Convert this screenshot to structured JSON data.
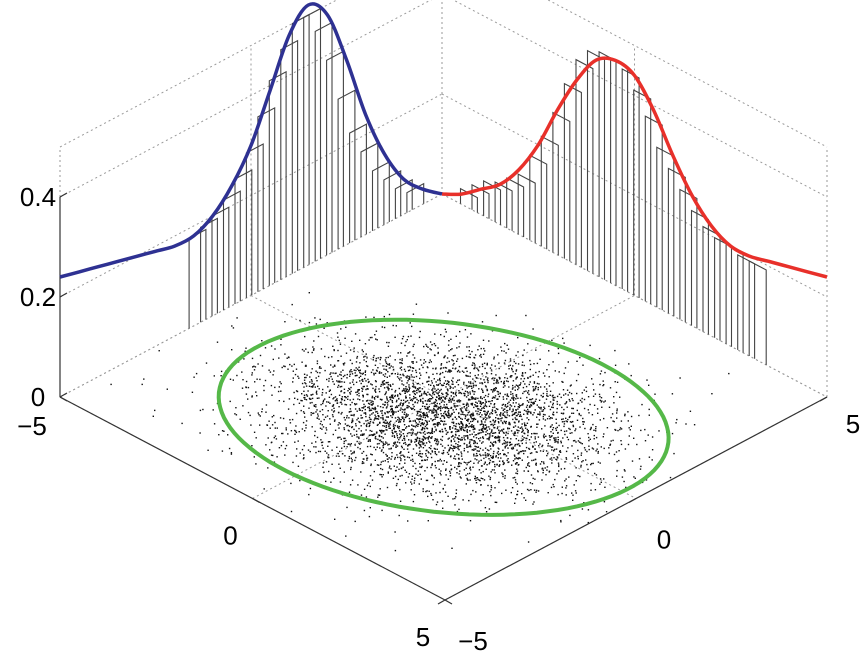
{
  "chart_data": {
    "type": "scatter",
    "title": "",
    "projection": "3d-isometric",
    "axes": {
      "x": {
        "range": [
          -5,
          5
        ],
        "ticks": [
          -5,
          0,
          5
        ],
        "tick_labels": [
          "−5",
          "0",
          "5"
        ]
      },
      "y": {
        "range": [
          -5,
          5
        ],
        "ticks": [
          -5,
          0,
          5
        ],
        "tick_labels": [
          "−5",
          "0",
          "5"
        ]
      },
      "z": {
        "range": [
          0,
          0.5
        ],
        "ticks": [
          0,
          0.2,
          0.4
        ],
        "tick_labels": [
          "0",
          "0.2",
          "0.4"
        ]
      }
    },
    "grid": true,
    "scatter": {
      "mean": [
        0.5,
        -0.5
      ],
      "std": [
        1.6,
        1.3
      ],
      "correlation": 0.2,
      "n_points": 4000,
      "color": "#111111"
    },
    "ellipse": {
      "center": [
        0.5,
        -0.5
      ],
      "std_multiplier": 2.6,
      "color": "#55b848"
    },
    "marginal_x": {
      "color": "#e8302a",
      "curve_x": [
        -5,
        -4.5,
        -4,
        -3.5,
        -3,
        -2.5,
        -2,
        -1.5,
        -1,
        -0.5,
        0,
        0.5,
        1,
        1.5,
        2,
        2.5,
        3,
        3.5,
        4,
        4.5,
        5
      ],
      "curve_density": [
        0.0,
        0.02,
        0.05,
        0.08,
        0.13,
        0.2,
        0.29,
        0.37,
        0.43,
        0.45,
        0.44,
        0.39,
        0.32,
        0.26,
        0.22,
        0.2,
        0.2,
        0.21,
        0.22,
        0.23,
        0.24
      ],
      "hist_bins": [
        -4.3,
        -4.0,
        -3.7,
        -3.4,
        -3.1,
        -2.8,
        -2.5,
        -2.2,
        -1.9,
        -1.6,
        -1.3,
        -1.0,
        -0.7,
        -0.4,
        -0.1,
        0.2,
        0.5,
        0.8,
        1.1,
        1.4,
        1.7,
        2.0,
        2.3,
        2.6,
        2.9,
        3.2
      ],
      "hist_values": [
        0.03,
        0.05,
        0.07,
        0.08,
        0.1,
        0.12,
        0.17,
        0.22,
        0.28,
        0.35,
        0.41,
        0.44,
        0.45,
        0.45,
        0.44,
        0.41,
        0.37,
        0.32,
        0.29,
        0.26,
        0.23,
        0.21,
        0.2,
        0.2,
        0.19,
        0.19
      ]
    },
    "marginal_y": {
      "color": "#2e3192",
      "curve_y": [
        -5,
        -4.5,
        -4,
        -3.5,
        -3,
        -2.5,
        -2,
        -1.5,
        -1,
        -0.5,
        0,
        0.5,
        1,
        1.5,
        2,
        2.5,
        3,
        3.5,
        4,
        4.5,
        5
      ],
      "curve_density": [
        0.0,
        0.03,
        0.07,
        0.14,
        0.24,
        0.37,
        0.48,
        0.52,
        0.48,
        0.39,
        0.3,
        0.24,
        0.2,
        0.18,
        0.18,
        0.19,
        0.2,
        0.21,
        0.22,
        0.23,
        0.24
      ],
      "hist_bins": [
        -4.3,
        -4.0,
        -3.7,
        -3.4,
        -3.1,
        -2.8,
        -2.5,
        -2.2,
        -1.9,
        -1.6,
        -1.3,
        -1.0,
        -0.7,
        -0.4,
        -0.1,
        0.2,
        0.5,
        0.8,
        1.1,
        1.4
      ],
      "hist_values": [
        0.04,
        0.06,
        0.09,
        0.12,
        0.17,
        0.22,
        0.3,
        0.39,
        0.46,
        0.5,
        0.5,
        0.46,
        0.41,
        0.35,
        0.29,
        0.25,
        0.22,
        0.2,
        0.19,
        0.18
      ]
    }
  }
}
